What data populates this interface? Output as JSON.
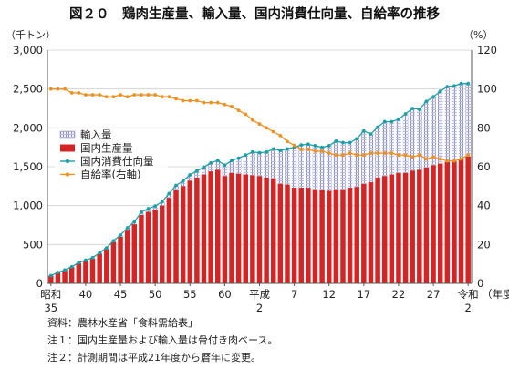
{
  "chart_data": {
    "type": "bar",
    "title": "図２０　鶏肉生産量、輸入量、国内消費仕向量、自給率の推移",
    "y_unit": "（千トン）",
    "y2_unit": "（%）",
    "x_unit": "（年度）",
    "ylim": [
      0,
      3000
    ],
    "y2lim": [
      0,
      120
    ],
    "y_ticks": [
      "0",
      "500",
      "1,000",
      "1,500",
      "2,000",
      "2,500",
      "3,000"
    ],
    "y2_ticks": [
      "0",
      "20",
      "40",
      "60",
      "80",
      "100",
      "120"
    ],
    "x_labels": [
      {
        "year": 1960,
        "line1": "昭和",
        "line2": "35"
      },
      {
        "year": 1965,
        "line1": "40",
        "line2": ""
      },
      {
        "year": 1970,
        "line1": "45",
        "line2": ""
      },
      {
        "year": 1975,
        "line1": "50",
        "line2": ""
      },
      {
        "year": 1980,
        "line1": "55",
        "line2": ""
      },
      {
        "year": 1985,
        "line1": "60",
        "line2": ""
      },
      {
        "year": 1990,
        "line1": "平成",
        "line2": "2"
      },
      {
        "year": 1995,
        "line1": "7",
        "line2": ""
      },
      {
        "year": 2000,
        "line1": "12",
        "line2": ""
      },
      {
        "year": 2005,
        "line1": "17",
        "line2": ""
      },
      {
        "year": 2010,
        "line1": "22",
        "line2": ""
      },
      {
        "year": 2015,
        "line1": "27",
        "line2": ""
      },
      {
        "year": 2020,
        "line1": "令和",
        "line2": "2"
      }
    ],
    "years": [
      1960,
      1961,
      1962,
      1963,
      1964,
      1965,
      1966,
      1967,
      1968,
      1969,
      1970,
      1971,
      1972,
      1973,
      1974,
      1975,
      1976,
      1977,
      1978,
      1979,
      1980,
      1981,
      1982,
      1983,
      1984,
      1985,
      1986,
      1987,
      1988,
      1989,
      1990,
      1991,
      1992,
      1993,
      1994,
      1995,
      1996,
      1997,
      1998,
      1999,
      2000,
      2001,
      2002,
      2003,
      2004,
      2005,
      2006,
      2007,
      2008,
      2009,
      2010,
      2011,
      2012,
      2013,
      2014,
      2015,
      2016,
      2017,
      2018,
      2019,
      2020
    ],
    "series": [
      {
        "name": "輸入量",
        "color": "#8e8ec8",
        "values": [
          0,
          0,
          2,
          4,
          6,
          8,
          10,
          12,
          15,
          18,
          20,
          25,
          30,
          35,
          40,
          45,
          50,
          55,
          60,
          65,
          75,
          85,
          95,
          110,
          120,
          140,
          160,
          200,
          250,
          300,
          300,
          330,
          380,
          430,
          460,
          520,
          550,
          560,
          560,
          550,
          580,
          620,
          600,
          580,
          620,
          680,
          620,
          650,
          700,
          680,
          690,
          760,
          800,
          780,
          850,
          880,
          930,
          970,
          970,
          970,
          940
        ]
      },
      {
        "name": "国内生産量",
        "color": "#d32525",
        "values": [
          100,
          140,
          170,
          210,
          260,
          290,
          320,
          380,
          440,
          530,
          600,
          690,
          760,
          880,
          920,
          950,
          1000,
          1100,
          1200,
          1250,
          1320,
          1360,
          1400,
          1440,
          1460,
          1380,
          1420,
          1410,
          1400,
          1390,
          1380,
          1360,
          1350,
          1280,
          1270,
          1230,
          1230,
          1230,
          1210,
          1200,
          1190,
          1210,
          1210,
          1230,
          1240,
          1280,
          1300,
          1360,
          1380,
          1400,
          1420,
          1420,
          1450,
          1460,
          1490,
          1520,
          1540,
          1560,
          1570,
          1600,
          1630
        ]
      },
      {
        "name": "国内消費仕向量",
        "color": "#1aa0a8",
        "values": [
          100,
          140,
          172,
          214,
          266,
          298,
          330,
          392,
          455,
          548,
          620,
          715,
          790,
          915,
          960,
          995,
          1050,
          1155,
          1260,
          1315,
          1395,
          1445,
          1495,
          1550,
          1580,
          1520,
          1580,
          1610,
          1650,
          1690,
          1680,
          1690,
          1730,
          1710,
          1730,
          1750,
          1780,
          1790,
          1770,
          1750,
          1770,
          1830,
          1810,
          1810,
          1860,
          1960,
          1920,
          2010,
          2080,
          2080,
          2110,
          2180,
          2250,
          2240,
          2340,
          2400,
          2470,
          2530,
          2540,
          2570,
          2570
        ]
      },
      {
        "name": "自給率(右軸)",
        "color": "#f0901e",
        "axis": "right",
        "values": [
          100,
          100,
          100,
          98,
          98,
          97,
          97,
          97,
          96,
          96,
          97,
          96,
          97,
          97,
          97,
          97,
          96,
          96,
          95,
          94,
          94,
          94,
          93,
          93,
          93,
          92,
          91,
          89,
          87,
          84,
          82,
          80,
          78,
          76,
          73,
          71,
          69,
          69,
          68,
          68,
          67,
          66,
          66,
          67,
          66,
          66,
          67,
          67,
          67,
          67,
          66,
          66,
          65,
          66,
          64,
          65,
          64,
          63,
          63,
          64,
          66
        ]
      }
    ],
    "legend": {
      "position": "upper-left",
      "items": [
        "輸入量",
        "国内生産量",
        "国内消費仕向量",
        "自給率(右軸)"
      ]
    },
    "grid": "horizontal"
  },
  "notes": [
    "資料：農林水産省「食料需給表」",
    "注１：国内生産量および輸入量は骨付き肉ベース。",
    "注２：計測期間は平成21年度から暦年に変更。"
  ]
}
